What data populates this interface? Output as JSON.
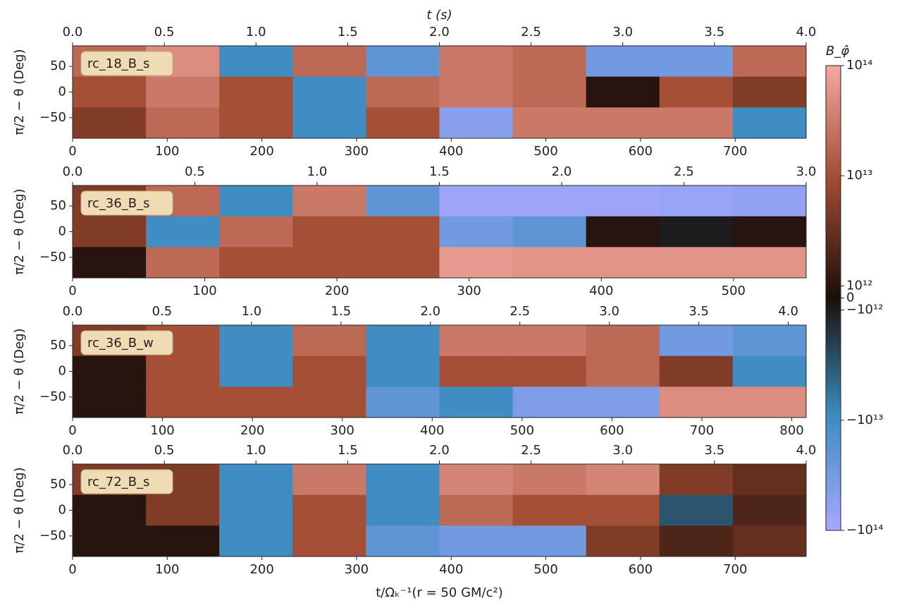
{
  "chart_data": [
    {
      "type": "heatmap",
      "label": "rc_18_B_s",
      "top_x_label": "t (s)",
      "y_label": "π/2 − θ (Deg)",
      "xlim": [
        0,
        775
      ],
      "xticks": [
        0,
        100,
        200,
        300,
        400,
        500,
        600,
        700
      ],
      "top_xlim": [
        0,
        4.0
      ],
      "top_xticks": [
        {
          "value": 0,
          "label": "0.0"
        },
        {
          "value": 0.5,
          "label": "0.5"
        },
        {
          "value": 1,
          "label": "1.0"
        },
        {
          "value": 1.5,
          "label": "1.5"
        },
        {
          "value": 2,
          "label": "2.0"
        },
        {
          "value": 2.5,
          "label": "2.5"
        },
        {
          "value": 3,
          "label": "3.0"
        },
        {
          "value": 3.5,
          "label": "3.5"
        },
        {
          "value": 4,
          "label": "4.0"
        }
      ],
      "ylim": [
        -90,
        90
      ],
      "yticks": [
        {
          "value": -50,
          "label": "−50"
        },
        0,
        50
      ],
      "z": [
        [
          20000000000000.0,
          50000000000000.0,
          -10000000000000.0,
          20000000000000.0,
          -20000000000000.0,
          30000000000000.0,
          20000000000000.0,
          -30000000000000.0,
          -30000000000000.0,
          20000000000000.0
        ],
        [
          10000000000000.0,
          30000000000000.0,
          10000000000000.0,
          -10000000000000.0,
          20000000000000.0,
          30000000000000.0,
          20000000000000.0,
          1000000000000.0,
          10000000000000.0,
          5000000000000.0
        ],
        [
          5000000000000.0,
          20000000000000.0,
          10000000000000.0,
          -10000000000000.0,
          10000000000000.0,
          -50000000000000.0,
          30000000000000.0,
          30000000000000.0,
          30000000000000.0,
          -10000000000000.0
        ]
      ]
    },
    {
      "type": "heatmap",
      "label": "rc_36_B_s",
      "y_label": "π/2 − θ (Deg)",
      "xlim": [
        0,
        555
      ],
      "xticks": [
        0,
        100,
        200,
        300,
        400,
        500
      ],
      "top_xlim": [
        0,
        3.0
      ],
      "top_xticks": [
        {
          "value": 0,
          "label": "0.0"
        },
        {
          "value": 0.5,
          "label": "0.5"
        },
        {
          "value": 1,
          "label": "1.0"
        },
        {
          "value": 1.5,
          "label": "1.5"
        },
        {
          "value": 2,
          "label": "2.0"
        },
        {
          "value": 2.5,
          "label": "2.5"
        },
        {
          "value": 3,
          "label": "3.0"
        }
      ],
      "ylim": [
        -90,
        90
      ],
      "yticks": [
        {
          "value": -50,
          "label": "−50"
        },
        0,
        50
      ],
      "z": [
        [
          5000000000000.0,
          20000000000000.0,
          -10000000000000.0,
          30000000000000.0,
          -20000000000000.0,
          -80000000000000.0,
          -80000000000000.0,
          -80000000000000.0,
          -70000000000000.0,
          -60000000000000.0
        ],
        [
          5000000000000.0,
          -10000000000000.0,
          20000000000000.0,
          10000000000000.0,
          10000000000000.0,
          -30000000000000.0,
          -20000000000000.0,
          1000000000000.0,
          -1000000000000.0,
          1000000000000.0
        ],
        [
          1000000000000.0,
          20000000000000.0,
          10000000000000.0,
          10000000000000.0,
          10000000000000.0,
          70000000000000.0,
          60000000000000.0,
          60000000000000.0,
          60000000000000.0,
          60000000000000.0
        ]
      ]
    },
    {
      "type": "heatmap",
      "label": "rc_36_B_w",
      "y_label": "π/2 − θ (Deg)",
      "xlim": [
        0,
        816
      ],
      "xticks": [
        0,
        100,
        200,
        300,
        400,
        500,
        600,
        700,
        800
      ],
      "top_xlim": [
        0,
        4.1
      ],
      "top_xticks": [
        {
          "value": 0,
          "label": "0.0"
        },
        {
          "value": 0.5,
          "label": "0.5"
        },
        {
          "value": 1,
          "label": "1.0"
        },
        {
          "value": 1.5,
          "label": "1.5"
        },
        {
          "value": 2,
          "label": "2.0"
        },
        {
          "value": 2.5,
          "label": "2.5"
        },
        {
          "value": 3,
          "label": "3.0"
        },
        {
          "value": 3.5,
          "label": "3.5"
        },
        {
          "value": 4,
          "label": "4.0"
        }
      ],
      "ylim": [
        -90,
        90
      ],
      "yticks": [
        {
          "value": -50,
          "label": "−50"
        },
        0,
        50
      ],
      "z": [
        [
          5000000000000.0,
          10000000000000.0,
          -10000000000000.0,
          20000000000000.0,
          -10000000000000.0,
          30000000000000.0,
          30000000000000.0,
          20000000000000.0,
          -30000000000000.0,
          -20000000000000.0
        ],
        [
          1000000000000.0,
          10000000000000.0,
          -10000000000000.0,
          10000000000000.0,
          -10000000000000.0,
          10000000000000.0,
          10000000000000.0,
          20000000000000.0,
          5000000000000.0,
          -10000000000000.0
        ],
        [
          1000000000000.0,
          10000000000000.0,
          10000000000000.0,
          10000000000000.0,
          -20000000000000.0,
          -10000000000000.0,
          -40000000000000.0,
          -40000000000000.0,
          50000000000000.0,
          50000000000000.0
        ]
      ]
    },
    {
      "type": "heatmap",
      "label": "rc_72_B_s",
      "y_label": "π/2 − θ (Deg)",
      "x_label": "t/Ωₖ⁻¹(r = 50 GM/c²)",
      "xlim": [
        0,
        775
      ],
      "xticks": [
        0,
        100,
        200,
        300,
        400,
        500,
        600,
        700
      ],
      "top_xlim": [
        0,
        4.0
      ],
      "top_xticks": [
        {
          "value": 0,
          "label": "0.0"
        },
        {
          "value": 0.5,
          "label": "0.5"
        },
        {
          "value": 1,
          "label": "1.0"
        },
        {
          "value": 1.5,
          "label": "1.5"
        },
        {
          "value": 2,
          "label": "2.0"
        },
        {
          "value": 2.5,
          "label": "2.5"
        },
        {
          "value": 3,
          "label": "3.0"
        },
        {
          "value": 3.5,
          "label": "3.5"
        },
        {
          "value": 4,
          "label": "4.0"
        }
      ],
      "ylim": [
        -90,
        90
      ],
      "yticks": [
        {
          "value": -50,
          "label": "−50"
        },
        0,
        50
      ],
      "z": [
        [
          5000000000000.0,
          5000000000000.0,
          -10000000000000.0,
          30000000000000.0,
          -10000000000000.0,
          40000000000000.0,
          30000000000000.0,
          40000000000000.0,
          5000000000000.0,
          3000000000000.0
        ],
        [
          1000000000000.0,
          5000000000000.0,
          -10000000000000.0,
          10000000000000.0,
          -10000000000000.0,
          20000000000000.0,
          10000000000000.0,
          10000000000000.0,
          -3000000000000.0,
          2000000000000.0
        ],
        [
          1000000000000.0,
          1000000000000.0,
          -10000000000000.0,
          10000000000000.0,
          -20000000000000.0,
          -30000000000000.0,
          -30000000000000.0,
          5000000000000.0,
          2000000000000.0,
          3000000000000.0
        ]
      ]
    }
  ],
  "colorbar": {
    "title": "B_φ̂",
    "scale": "symlog",
    "linthresh": 1000000000000.0,
    "lim": [
      -100000000000000.0,
      100000000000000.0
    ],
    "colors": {
      "neg_max": "#a8a8ff",
      "neg_mid": "#3a8cc0",
      "zero": "#1a0e0a",
      "pos_mid": "#a04a30",
      "pos_max": "#f4a8a0"
    },
    "ticks": [
      {
        "value": 100000000000000.0,
        "label": "10¹⁴"
      },
      {
        "value": 10000000000000.0,
        "label": "10¹³"
      },
      {
        "value": 1000000000000.0,
        "label": "10¹²"
      },
      0,
      {
        "value": -1000000000000.0,
        "label": "−10¹²"
      },
      {
        "value": -10000000000000.0,
        "label": "−10¹³"
      },
      {
        "value": -100000000000000.0,
        "label": "−10¹⁴"
      }
    ]
  }
}
